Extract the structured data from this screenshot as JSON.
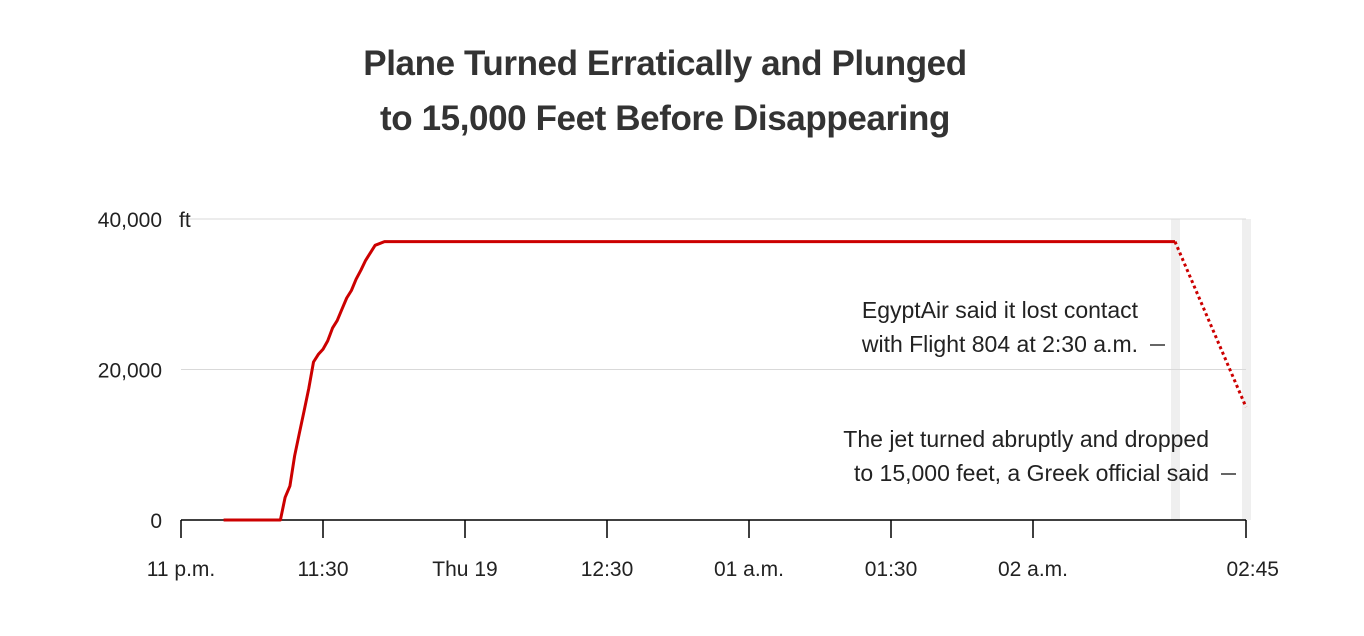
{
  "title_lines": [
    "Plane Turned Erratically and Plunged",
    "to 15,000 Feet Before Disappearing"
  ],
  "colors": {
    "line": "#cc0000",
    "text": "#222222",
    "grid": "#d9d9d9",
    "axis": "#000000",
    "highlight_band": "#efefef"
  },
  "annotations": [
    {
      "lines": [
        "EgyptAir said it lost contact",
        "with Flight 804 at 2:30 a.m."
      ],
      "minutes": 210
    },
    {
      "lines": [
        "The jet turned abruptly and dropped",
        "to 15,000 feet, a Greek official said"
      ],
      "minutes": 225
    }
  ],
  "chart_data": {
    "type": "line",
    "title": "Plane Turned Erratically and Plunged to 15,000 Feet Before Disappearing",
    "xlabel": "",
    "ylabel": "",
    "y_unit": "ft",
    "ylim": [
      0,
      40000
    ],
    "xlim_minutes_after_11pm": [
      0,
      225
    ],
    "x_ticks": [
      {
        "label": "11 p.m.",
        "minutes": 0
      },
      {
        "label": "11:30",
        "minutes": 30
      },
      {
        "label": "Thu 19",
        "minutes": 60
      },
      {
        "label": "12:30",
        "minutes": 90
      },
      {
        "label": "01 a.m.",
        "minutes": 120
      },
      {
        "label": "01:30",
        "minutes": 150
      },
      {
        "label": "02 a.m.",
        "minutes": 180
      },
      {
        "label": "02:45",
        "minutes": 225
      }
    ],
    "y_ticks": [
      {
        "label": "0",
        "value": 0
      },
      {
        "label": "20,000",
        "value": 20000
      },
      {
        "label": "40,000",
        "value": 40000
      }
    ],
    "grid": true,
    "series": [
      {
        "style": "solid",
        "points": [
          [
            9,
            0
          ],
          [
            21,
            0
          ],
          [
            22,
            3000
          ],
          [
            23,
            4500
          ],
          [
            24,
            8500
          ],
          [
            25,
            11500
          ],
          [
            26,
            14500
          ],
          [
            27,
            17500
          ],
          [
            28,
            21000
          ],
          [
            29,
            22000
          ],
          [
            30,
            22700
          ],
          [
            31,
            23800
          ],
          [
            32,
            25500
          ],
          [
            33,
            26500
          ],
          [
            34,
            28000
          ],
          [
            35,
            29500
          ],
          [
            36,
            30500
          ],
          [
            37,
            32000
          ],
          [
            38,
            33200
          ],
          [
            39,
            34500
          ],
          [
            40,
            35500
          ],
          [
            41,
            36500
          ],
          [
            43,
            37000
          ],
          [
            60,
            37000
          ],
          [
            90,
            37000
          ],
          [
            120,
            37000
          ],
          [
            150,
            37000
          ],
          [
            180,
            37000
          ],
          [
            210,
            37000
          ]
        ]
      },
      {
        "style": "dotted",
        "points": [
          [
            210,
            37000
          ],
          [
            225,
            15000
          ]
        ]
      }
    ]
  }
}
